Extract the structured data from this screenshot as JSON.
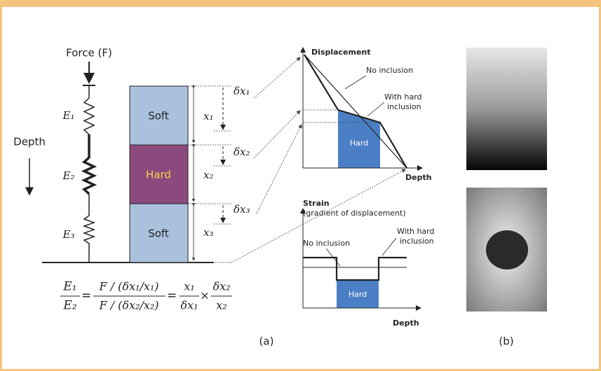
{
  "spring_model": {
    "force_label": "Force (F)",
    "moduli": [
      "E₁",
      "E₂",
      "E₃"
    ],
    "depth_label": "Depth"
  },
  "layers": [
    {
      "label": "Soft",
      "thickness": "x₁",
      "displacement": "δx₁"
    },
    {
      "label": "Hard",
      "thickness": "x₂",
      "displacement": "δx₂"
    },
    {
      "label": "Soft",
      "thickness": "x₃",
      "displacement": "δx₃"
    }
  ],
  "displacement_plot": {
    "title": "Displacement",
    "no_inclusion": "No inclusion",
    "with_inclusion": [
      "With hard",
      "inclusion"
    ],
    "region": "Hard",
    "x_label": "Depth"
  },
  "strain_plot": {
    "title": "Strain",
    "subtitle": "(gradient of displacement)",
    "no_inclusion": "No inclusion",
    "with_inclusion": [
      "With hard",
      "inclusion"
    ],
    "region": "Hard",
    "x_label": "Depth"
  },
  "formula": {
    "lhs": [
      "E₁",
      "E₂"
    ],
    "middle": [
      "F / (δx₁/x₁)",
      "F / (δx₂/x₂)"
    ],
    "equals": "=",
    "rhs_left": [
      "x₁",
      "δx₁"
    ],
    "times": "×",
    "rhs_right": [
      "δx₂",
      "x₂"
    ]
  },
  "panel_labels": [
    "(a)",
    "(b)"
  ]
}
